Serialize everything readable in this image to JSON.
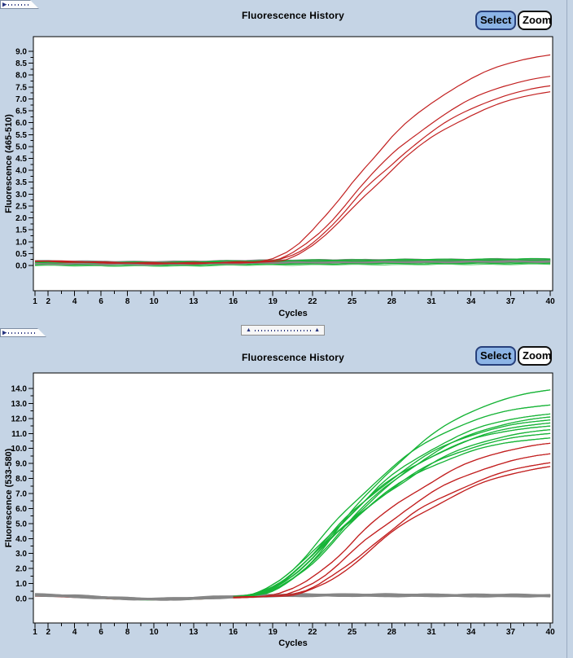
{
  "buttons": {
    "select": "Select",
    "zoom": "Zoom"
  },
  "colors": {
    "background": "#c5d4e5",
    "plot_background": "#ffffff",
    "positive_red": "#c22020",
    "positive_green": "#17b437",
    "light_green": "#5ecb6e",
    "baseline_gray": "#868686",
    "select_button_fill": "#8cb4e6",
    "select_button_border": "#27407c"
  },
  "chart_data": [
    {
      "type": "line",
      "title": "Fluorescence History",
      "xlabel": "Cycles",
      "ylabel": "Fluorescence (465-510)",
      "xlim": [
        1,
        40
      ],
      "ylim": [
        0,
        9.0
      ],
      "grid": false,
      "legend": null,
      "x_tick_labels": [
        "1",
        "2",
        "4",
        "6",
        "8",
        "10",
        "13",
        "16",
        "19",
        "22",
        "25",
        "28",
        "31",
        "34",
        "37",
        "40"
      ],
      "y_tick_labels": [
        "0.0",
        "0.5",
        "1.0",
        "1.5",
        "2.0",
        "2.5",
        "3.0",
        "3.5",
        "4.0",
        "4.5",
        "5.0",
        "5.5",
        "6.0",
        "6.5",
        "7.0",
        "7.5",
        "8.0",
        "8.5",
        "9.0"
      ],
      "y_minor_step": 0.25,
      "noise": 0.018,
      "rise_jitter": 0.05,
      "amplification_shape": {
        "start_cycle": 17,
        "values": [
          0,
          0.004,
          0.015,
          0.045,
          0.09,
          0.15,
          0.22,
          0.3,
          0.385,
          0.46,
          0.53,
          0.6,
          0.66,
          0.715,
          0.765,
          0.81,
          0.85,
          0.885,
          0.915,
          0.94,
          0.96,
          0.977,
          0.99,
          1.0,
          1.008,
          1.015,
          1.021,
          1.026,
          1.03
        ]
      },
      "series": [
        {
          "name": "negative-green-1",
          "kind": "flat",
          "color": "#17b437",
          "width": 1.2,
          "start": 0.1,
          "end": 0.16,
          "dip": 0.05,
          "seed": 1
        },
        {
          "name": "negative-green-2",
          "kind": "flat",
          "color": "#17b437",
          "width": 1.2,
          "start": 0.06,
          "end": 0.12,
          "dip": 0.05,
          "seed": 2
        },
        {
          "name": "negative-green-3",
          "kind": "flat",
          "color": "#17b437",
          "width": 1.2,
          "start": 0.13,
          "end": 0.2,
          "dip": 0.05,
          "seed": 3
        },
        {
          "name": "negative-green-4",
          "kind": "flat",
          "color": "#17b437",
          "width": 1.2,
          "start": 0.03,
          "end": 0.09,
          "dip": 0.05,
          "seed": 4
        },
        {
          "name": "negative-green-5",
          "kind": "flat",
          "color": "#17b437",
          "width": 1.2,
          "start": 0.09,
          "end": 0.14,
          "dip": 0.05,
          "seed": 5
        },
        {
          "name": "negative-green-light",
          "kind": "flat",
          "color": "#5ecb6e",
          "width": 1.1,
          "start": 0.0,
          "end": 0.05,
          "dip": 0.04,
          "seed": 6
        },
        {
          "name": "baseline-gray-1",
          "kind": "flat",
          "color": "#868686",
          "width": 2.6,
          "start": 0.12,
          "end": 0.22,
          "dip": 0.05,
          "seed": 7
        },
        {
          "name": "baseline-gray-2",
          "kind": "flat",
          "color": "#868686",
          "width": 2.6,
          "start": 0.16,
          "end": 0.26,
          "dip": 0.05,
          "seed": 8
        },
        {
          "name": "baseline-gray-3",
          "kind": "flat",
          "color": "#868686",
          "width": 2.6,
          "start": 0.09,
          "end": 0.17,
          "dip": 0.05,
          "seed": 9
        },
        {
          "name": "baseline-gray-4",
          "kind": "flat",
          "color": "#868686",
          "width": 2.6,
          "start": 0.14,
          "end": 0.2,
          "dip": 0.05,
          "seed": 10
        },
        {
          "name": "baseline-gray-5",
          "kind": "flat",
          "color": "#868686",
          "width": 2.6,
          "start": 0.18,
          "end": 0.24,
          "dip": 0.05,
          "seed": 11
        },
        {
          "name": "baseline-gray-6",
          "kind": "flat",
          "color": "#868686",
          "width": 2.6,
          "start": 0.11,
          "end": 0.19,
          "dip": 0.05,
          "seed": 12
        },
        {
          "name": "negative-green-6",
          "kind": "flat",
          "color": "#17b437",
          "width": 1.2,
          "start": 0.16,
          "end": 0.28,
          "dip": 0.05,
          "seed": 13
        },
        {
          "name": "negative-green-7",
          "kind": "flat",
          "color": "#17b437",
          "width": 1.2,
          "start": 0.13,
          "end": 0.24,
          "dip": 0.05,
          "seed": 14
        },
        {
          "name": "positive-red-1",
          "kind": "amp",
          "color": "#c22020",
          "width": 1.2,
          "final": 8.85,
          "shift": 0.0,
          "start": 0.2,
          "base_end": 0.1,
          "dip": 0.08,
          "seed": 15
        },
        {
          "name": "positive-red-2",
          "kind": "amp",
          "color": "#c22020",
          "width": 1.2,
          "final": 7.95,
          "shift": 0.4,
          "start": 0.19,
          "base_end": 0.1,
          "dip": 0.08,
          "seed": 16
        },
        {
          "name": "positive-red-3",
          "kind": "amp",
          "color": "#c22020",
          "width": 1.2,
          "final": 7.55,
          "shift": 0.7,
          "start": 0.21,
          "base_end": 0.11,
          "dip": 0.08,
          "seed": 17
        },
        {
          "name": "positive-red-4",
          "kind": "amp",
          "color": "#c22020",
          "width": 1.2,
          "final": 7.3,
          "shift": 0.9,
          "start": 0.18,
          "base_end": 0.09,
          "dip": 0.08,
          "seed": 18
        }
      ]
    },
    {
      "type": "line",
      "title": "Fluorescence History",
      "xlabel": "Cycles",
      "ylabel": "Fluorescence (533-580)",
      "xlim": [
        1,
        40
      ],
      "ylim": [
        0,
        14.0
      ],
      "grid": false,
      "legend": null,
      "x_tick_labels": [
        "1",
        "2",
        "4",
        "6",
        "8",
        "10",
        "13",
        "16",
        "19",
        "22",
        "25",
        "28",
        "31",
        "34",
        "37",
        "40"
      ],
      "y_tick_labels": [
        "0.0",
        "1.0",
        "2.0",
        "3.0",
        "4.0",
        "5.0",
        "6.0",
        "7.0",
        "8.0",
        "9.0",
        "10.0",
        "11.0",
        "12.0",
        "13.0",
        "14.0"
      ],
      "y_minor_step": 0.5,
      "noise": 0.028,
      "rise_jitter": 0.1,
      "amplification_shape": {
        "start_cycle": 17,
        "values": [
          0,
          0.004,
          0.015,
          0.045,
          0.09,
          0.15,
          0.22,
          0.3,
          0.385,
          0.46,
          0.53,
          0.6,
          0.66,
          0.715,
          0.765,
          0.81,
          0.85,
          0.885,
          0.915,
          0.94,
          0.96,
          0.977,
          0.99,
          1.0,
          1.008,
          1.015,
          1.021,
          1.026,
          1.03
        ]
      },
      "series": [
        {
          "name": "positive-green-1",
          "kind": "amp",
          "color": "#17b437",
          "width": 1.2,
          "final": 13.9,
          "shift": -0.3,
          "start": 0.28,
          "base_end": 0.15,
          "dip": 0.32,
          "seed": 21,
          "overlay_from": 16
        },
        {
          "name": "positive-green-2",
          "kind": "amp",
          "color": "#17b437",
          "width": 1.2,
          "final": 12.9,
          "shift": -1.3,
          "start": 0.3,
          "base_end": 0.16,
          "dip": 0.32,
          "seed": 22,
          "overlay_from": 16
        },
        {
          "name": "positive-green-3",
          "kind": "amp",
          "color": "#17b437",
          "width": 1.2,
          "final": 12.3,
          "shift": -1.0,
          "start": 0.26,
          "base_end": 0.14,
          "dip": 0.3,
          "seed": 23,
          "overlay_from": 16
        },
        {
          "name": "positive-green-4",
          "kind": "amp",
          "color": "#17b437",
          "width": 1.2,
          "final": 12.1,
          "shift": -0.6,
          "start": 0.29,
          "base_end": 0.15,
          "dip": 0.33,
          "seed": 24,
          "overlay_from": 16
        },
        {
          "name": "positive-green-5",
          "kind": "amp",
          "color": "#17b437",
          "width": 1.2,
          "final": 11.9,
          "shift": -1.2,
          "start": 0.27,
          "base_end": 0.16,
          "dip": 0.31,
          "seed": 25,
          "overlay_from": 16
        },
        {
          "name": "positive-green-6",
          "kind": "amp",
          "color": "#17b437",
          "width": 1.2,
          "final": 11.7,
          "shift": -0.9,
          "start": 0.31,
          "base_end": 0.14,
          "dip": 0.34,
          "seed": 26,
          "overlay_from": 16
        },
        {
          "name": "positive-green-7",
          "kind": "amp",
          "color": "#17b437",
          "width": 1.2,
          "final": 11.5,
          "shift": -1.5,
          "start": 0.25,
          "base_end": 0.13,
          "dip": 0.3,
          "seed": 27,
          "overlay_from": 16
        },
        {
          "name": "positive-green-8",
          "kind": "amp",
          "color": "#17b437",
          "width": 1.2,
          "final": 11.25,
          "shift": -0.7,
          "start": 0.28,
          "base_end": 0.15,
          "dip": 0.32,
          "seed": 28,
          "overlay_from": 16
        },
        {
          "name": "positive-green-9",
          "kind": "amp",
          "color": "#17b437",
          "width": 1.2,
          "final": 11.0,
          "shift": -1.1,
          "start": 0.3,
          "base_end": 0.16,
          "dip": 0.33,
          "seed": 29,
          "overlay_from": 16
        },
        {
          "name": "positive-green-10",
          "kind": "amp",
          "color": "#17b437",
          "width": 1.2,
          "final": 10.7,
          "shift": -1.4,
          "start": 0.26,
          "base_end": 0.14,
          "dip": 0.31,
          "seed": 30,
          "overlay_from": 16
        },
        {
          "name": "positive-red-1",
          "kind": "amp",
          "color": "#c22020",
          "width": 1.2,
          "final": 10.35,
          "shift": 0.4,
          "start": 0.22,
          "base_end": 0.12,
          "dip": 0.25,
          "seed": 31,
          "overlay_from": 16
        },
        {
          "name": "positive-red-2",
          "kind": "amp",
          "color": "#c22020",
          "width": 1.2,
          "final": 9.65,
          "shift": 1.0,
          "start": 0.21,
          "base_end": 0.12,
          "dip": 0.25,
          "seed": 32,
          "overlay_from": 16
        },
        {
          "name": "positive-red-3",
          "kind": "amp",
          "color": "#c22020",
          "width": 1.2,
          "final": 9.05,
          "shift": 1.6,
          "start": 0.23,
          "base_end": 0.13,
          "dip": 0.24,
          "seed": 33,
          "overlay_from": 16
        },
        {
          "name": "positive-red-4",
          "kind": "amp",
          "color": "#c22020",
          "width": 1.2,
          "final": 8.8,
          "shift": 1.8,
          "start": 0.2,
          "base_end": 0.11,
          "dip": 0.24,
          "seed": 34,
          "overlay_from": 16
        },
        {
          "name": "baseline-gray-1",
          "kind": "flat",
          "color": "#868686",
          "width": 2.6,
          "start": 0.3,
          "end": 0.2,
          "dip": 0.3,
          "seed": 35
        },
        {
          "name": "baseline-gray-2",
          "kind": "flat",
          "color": "#868686",
          "width": 2.6,
          "start": 0.26,
          "end": 0.16,
          "dip": 0.29,
          "seed": 36
        },
        {
          "name": "baseline-gray-3",
          "kind": "flat",
          "color": "#868686",
          "width": 2.6,
          "start": 0.33,
          "end": 0.24,
          "dip": 0.31,
          "seed": 37
        },
        {
          "name": "baseline-gray-4",
          "kind": "flat",
          "color": "#868686",
          "width": 2.6,
          "start": 0.28,
          "end": 0.18,
          "dip": 0.3,
          "seed": 38
        },
        {
          "name": "baseline-gray-5",
          "kind": "flat",
          "color": "#868686",
          "width": 2.6,
          "start": 0.31,
          "end": 0.22,
          "dip": 0.3,
          "seed": 39
        },
        {
          "name": "baseline-gray-6",
          "kind": "flat",
          "color": "#868686",
          "width": 2.6,
          "start": 0.25,
          "end": 0.15,
          "dip": 0.29,
          "seed": 40
        }
      ]
    }
  ]
}
